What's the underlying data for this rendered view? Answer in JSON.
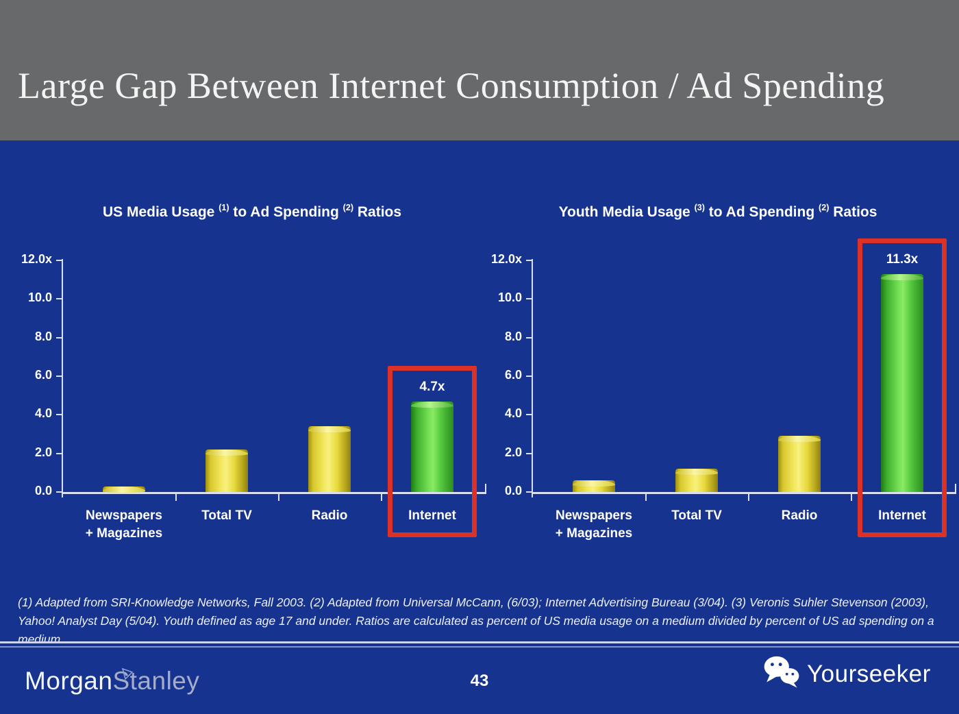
{
  "slide": {
    "title": "Large Gap Between Internet Consumption / Ad Spending",
    "page_number": "43",
    "footnote": "(1) Adapted from SRI-Knowledge Networks, Fall 2003.  (2) Adapted from Universal McCann, (6/03); Internet Advertising Bureau (3/04). (3) Veronis Suhler Stevenson (2003), Yahoo! Analyst Day (5/04).  Youth defined as age 17 and under.  Ratios are calculated as percent of US media usage on a medium divided by percent of US ad spending on a medium.",
    "brand": {
      "word1": "Morgan",
      "word2": "Stanley"
    },
    "watermark_label": "Yourseeker"
  },
  "colors": {
    "header_gray": "#68696b",
    "body_blue": "#16338f",
    "bar_yellow": "#ecdf3e",
    "bar_green": "#55c93f",
    "highlight_red": "#dc3126",
    "axis": "#d9e0f4",
    "stanley_gray": "#a6adc9"
  },
  "chart_data": [
    {
      "type": "bar",
      "title": "US Media Usage (1) to Ad Spending (2) Ratios",
      "title_segments": [
        {
          "t": "US Media Usage "
        },
        {
          "sup": "(1)"
        },
        {
          "t": " to Ad Spending "
        },
        {
          "sup": "(2)"
        },
        {
          "t": " Ratios"
        }
      ],
      "categories": [
        "Newspapers\n+ Magazines",
        "Total TV",
        "Radio",
        "Internet"
      ],
      "values": [
        0.3,
        2.2,
        3.4,
        4.7
      ],
      "bar_colors": [
        "yellow",
        "yellow",
        "yellow",
        "green"
      ],
      "highlight": {
        "index": 3,
        "label": "4.7x",
        "boxed": true
      },
      "ylim": [
        0,
        12
      ],
      "yticks": [
        {
          "value": 12,
          "label": "12.0x"
        },
        {
          "value": 10,
          "label": "10.0"
        },
        {
          "value": 8,
          "label": "8.0"
        },
        {
          "value": 6,
          "label": "6.0"
        },
        {
          "value": 4,
          "label": "4.0"
        },
        {
          "value": 2,
          "label": "2.0"
        },
        {
          "value": 0,
          "label": "0.0"
        }
      ],
      "grid": false,
      "legend": null
    },
    {
      "type": "bar",
      "title": "Youth Media Usage (3) to Ad Spending (2) Ratios",
      "title_segments": [
        {
          "t": "Youth Media Usage "
        },
        {
          "sup": "(3)"
        },
        {
          "t": " to Ad Spending "
        },
        {
          "sup": "(2)"
        },
        {
          "t": " Ratios"
        }
      ],
      "categories": [
        "Newspapers\n+ Magazines",
        "Total TV",
        "Radio",
        "Internet"
      ],
      "values": [
        0.6,
        1.2,
        2.9,
        11.3
      ],
      "bar_colors": [
        "yellow",
        "yellow",
        "yellow",
        "green"
      ],
      "highlight": {
        "index": 3,
        "label": "11.3x",
        "boxed": true
      },
      "ylim": [
        0,
        12
      ],
      "yticks": [
        {
          "value": 12,
          "label": "12.0x"
        },
        {
          "value": 10,
          "label": "10.0"
        },
        {
          "value": 8,
          "label": "8.0"
        },
        {
          "value": 6,
          "label": "6.0"
        },
        {
          "value": 4,
          "label": "4.0"
        },
        {
          "value": 2,
          "label": "2.0"
        },
        {
          "value": 0,
          "label": "0.0"
        }
      ],
      "grid": false,
      "legend": null
    }
  ]
}
